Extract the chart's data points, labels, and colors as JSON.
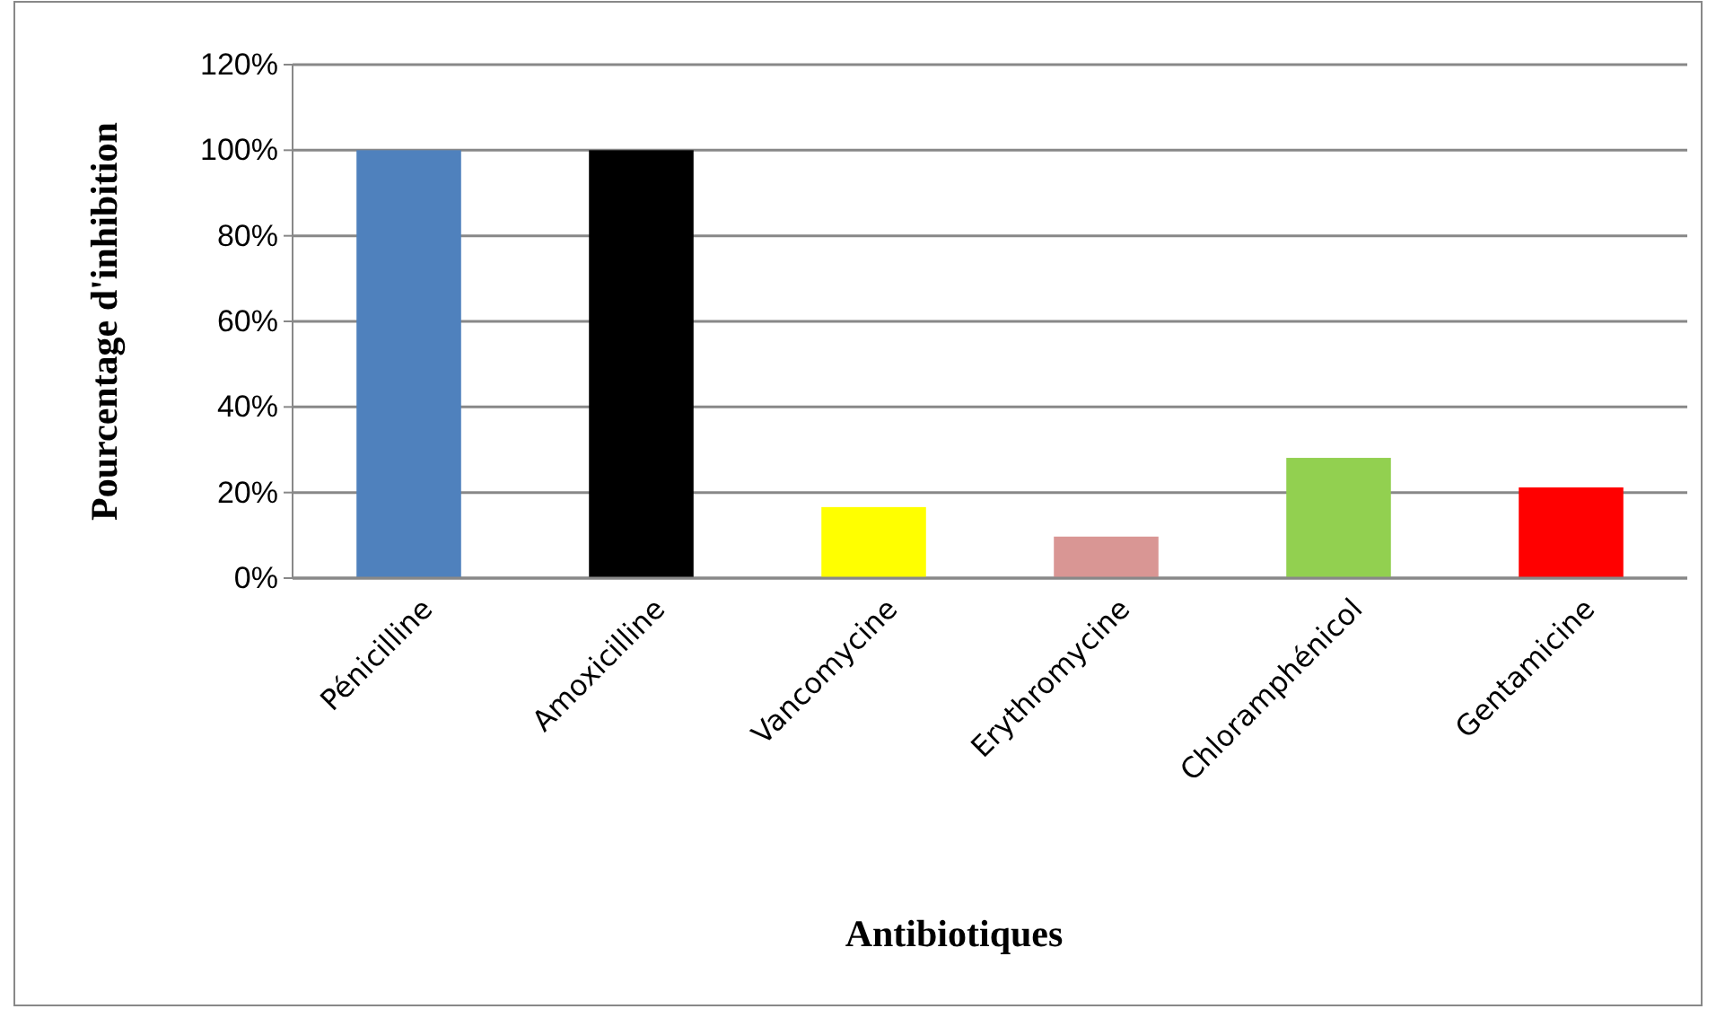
{
  "chart_data": {
    "type": "bar",
    "xlabel": "Antibiotiques",
    "ylabel": "Pourcentage d'inhibition",
    "categories": [
      "Pénicilline",
      "Amoxicilline",
      "Vancomycine",
      "Erythromycine",
      "Chloramphénicol",
      "Gentamicine"
    ],
    "values": [
      100,
      100,
      16.6,
      9.7,
      28.1,
      21.2
    ],
    "colors": [
      "#4f81bd",
      "#000000",
      "#ffff00",
      "#d99694",
      "#92d050",
      "#ff0000"
    ],
    "ylim": [
      0,
      120
    ],
    "yticks": [
      {
        "value": 0,
        "label": "0%"
      },
      {
        "value": 20,
        "label": "20%"
      },
      {
        "value": 40,
        "label": "40%"
      },
      {
        "value": 60,
        "label": "60%"
      },
      {
        "value": 80,
        "label": "80%"
      },
      {
        "value": 100,
        "label": "100%"
      },
      {
        "value": 120,
        "label": "120%"
      }
    ],
    "grid": "y"
  }
}
